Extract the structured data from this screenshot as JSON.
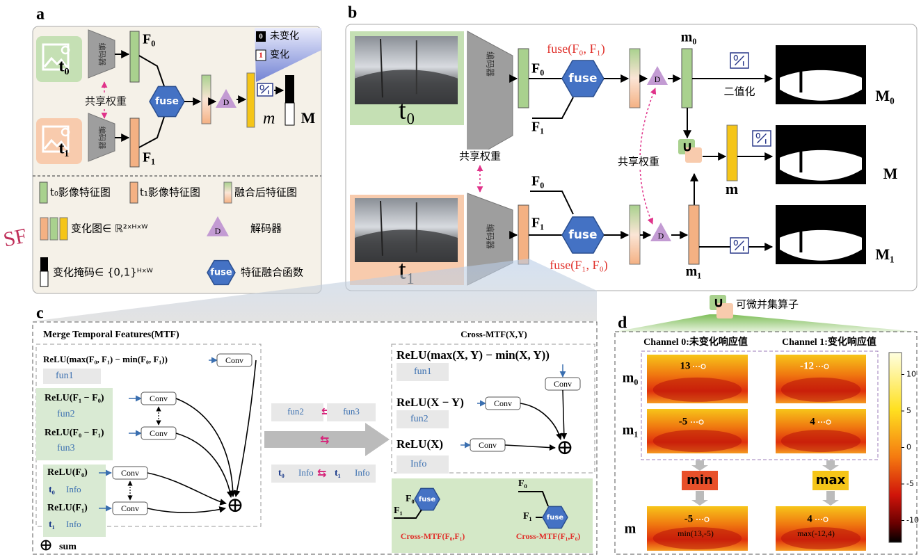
{
  "panel_a": {
    "label": "a",
    "t0": "t₀",
    "t1": "t₁",
    "encoder": [
      "编码器",
      "编码器"
    ],
    "F0": "F₀",
    "F1": "F₁",
    "shared_weight": "共享权重",
    "fuse": "fuse",
    "decoder": "D",
    "m": "m",
    "M": "M",
    "mask_key": [
      [
        "0",
        "未变化"
      ],
      [
        "1",
        "变化"
      ]
    ],
    "legend": {
      "t0_feature": "t₀影像特征图",
      "t1_feature": "t₁影像特征图",
      "fused_feature": "融合后特征图",
      "change_map": "变化图∈ ℝ²ˣᴴˣᵂ",
      "decoder_icon": "D",
      "decoder": "解码器",
      "change_mask": "变化掩码∈ {0,1}ᴴˣᵂ",
      "fuse_icon": "fuse",
      "fuse": "特征融合函数"
    }
  },
  "side_mark": "SF",
  "panel_b": {
    "label": "b",
    "t0": "t₀",
    "t1": "t₁",
    "encoder": [
      "编码器",
      "编码器"
    ],
    "top_F0": "F₀",
    "top_F1": "F₁",
    "bottom_F0": "F₀",
    "bottom_F1": "F₁",
    "fuse": [
      "fuse",
      "fuse"
    ],
    "fuse_top": "fuse(F₀, F₁)",
    "fuse_bottom": "fuse(F₁, F₀)",
    "decoder": [
      "D",
      "D"
    ],
    "shared_weight": [
      "共享权重",
      "共享权重"
    ],
    "m0": "m₀",
    "m1": "m₁",
    "m": "m",
    "M0": "M₀",
    "M": "M",
    "M1": "M₁",
    "binarize": "二值化",
    "union": "∪"
  },
  "panel_c": {
    "label": "c",
    "title": "Merge Temporal Features(MTF)",
    "rows": [
      {
        "expr": "ReLU(max(F₀, F₁) − min(F₀, F₁))",
        "op": "Conv",
        "name": "fun1"
      },
      {
        "expr": "ReLU(F₁ − F₀)",
        "op": "Conv",
        "name": "fun2"
      },
      {
        "expr": "ReLU(F₀ − F₁)",
        "op": "Conv",
        "name": "fun3"
      },
      {
        "expr": "ReLU(F₀)",
        "op": "Conv",
        "name": "t₀",
        "info": "Info"
      },
      {
        "expr": "ReLU(F₁)",
        "op": "Conv",
        "name": "t₁",
        "info": "Info"
      }
    ],
    "sum_symbol": "⊕",
    "sum_legend_symbol": "⊕",
    "sum_label": "sum",
    "swap_row1": [
      "fun2",
      "⇆",
      "fun3"
    ],
    "swap_arrow": "⇆",
    "swap_row2": [
      "t₀",
      "Info",
      "⇆",
      "t₁",
      "Info"
    ],
    "cross": {
      "title": "Cross-MTF(X,Y)",
      "rows": [
        {
          "expr": "ReLU(max(X, Y) − min(X, Y))",
          "op": "Conv",
          "name": "fun1"
        },
        {
          "expr": "ReLU(X − Y)",
          "op": "Conv",
          "name": "fun2"
        },
        {
          "expr": "ReLU(X)",
          "op": "Conv",
          "name": "Info"
        }
      ],
      "sum_symbol": "⊕"
    },
    "examples": [
      {
        "in_top": "F₀",
        "in_bottom": "F₁",
        "fuse": "fuse",
        "caption": "Cross-MTF(F₀,F₁)"
      },
      {
        "in_top": "F₀",
        "in_bottom": "F₁",
        "fuse": "fuse",
        "caption": "Cross-MTF(F₁,F₀)"
      }
    ]
  },
  "panel_d": {
    "label": "d",
    "union": "∪",
    "union_label": "可微并集算子",
    "columns": [
      "Channel 0:未变化响应值",
      "Channel 1:变化响应值"
    ],
    "rows": [
      "m₀",
      "m₁",
      "m"
    ],
    "values": [
      [
        13,
        -12
      ],
      [
        -5,
        4
      ],
      [
        -5,
        4
      ]
    ],
    "ops": [
      "min",
      "max"
    ],
    "formulas": [
      "min(13,-5)",
      "max(-12,4)"
    ],
    "colorbar_range": [
      -13,
      13
    ],
    "colorbar_ticks": [
      10,
      5,
      0,
      -5,
      -10
    ]
  }
}
